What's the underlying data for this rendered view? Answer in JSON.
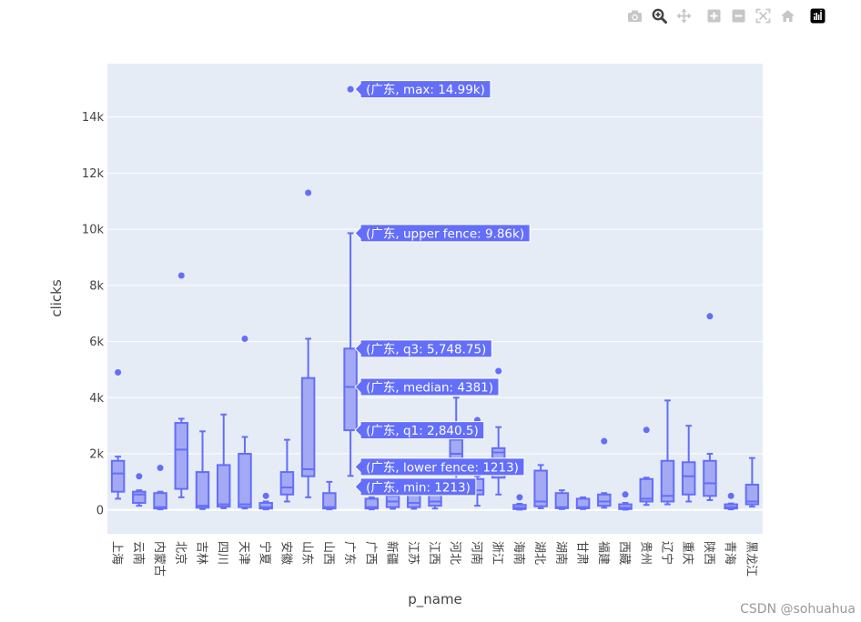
{
  "modebar": {
    "buttons": [
      {
        "name": "camera-icon",
        "color": "#c7c7c7"
      },
      {
        "name": "zoom-icon",
        "color": "#444444"
      },
      {
        "name": "pan-icon",
        "color": "#c7c7c7"
      },
      {
        "name": "zoom-in-icon",
        "color": "#c7c7c7"
      },
      {
        "name": "zoom-out-icon",
        "color": "#c7c7c7"
      },
      {
        "name": "autoscale-icon",
        "color": "#c7c7c7"
      },
      {
        "name": "reset-axes-icon",
        "color": "#c7c7c7"
      },
      {
        "name": "plotly-logo-icon",
        "color": "#000000"
      }
    ]
  },
  "watermark": "CSDN @sohuahua",
  "chart_data": {
    "type": "box",
    "xlabel": "p_name",
    "ylabel": "clicks",
    "ylim": [
      -850,
      15900
    ],
    "yticks": [
      0,
      2000,
      4000,
      6000,
      8000,
      10000,
      12000,
      14000
    ],
    "ytick_labels": [
      "0",
      "2k",
      "4k",
      "6k",
      "8k",
      "10k",
      "12k",
      "14k"
    ],
    "grid": true,
    "colors": {
      "box_line": "#636efa",
      "box_fill": "#a4a9f4",
      "plot_bg": "#e5ecf6",
      "grid": "#ffffff"
    },
    "categories": [
      "上海",
      "云南",
      "内蒙古",
      "北京",
      "吉林",
      "四川",
      "天津",
      "宁夏",
      "安徽",
      "山东",
      "山西",
      "广东",
      "广西",
      "新疆",
      "江苏",
      "江西",
      "河北",
      "河南",
      "浙江",
      "海南",
      "湖北",
      "湖南",
      "甘肃",
      "福建",
      "西藏",
      "贵州",
      "辽宁",
      "重庆",
      "陕西",
      "青海",
      "黑龙江"
    ],
    "boxes": [
      {
        "min": 400,
        "q1": 650,
        "median": 1300,
        "q3": 1750,
        "max": 1900,
        "outliers": [
          4900
        ]
      },
      {
        "min": 150,
        "q1": 250,
        "median": 550,
        "q3": 650,
        "max": 700,
        "outliers": [
          1200
        ]
      },
      {
        "min": 20,
        "q1": 50,
        "median": 100,
        "q3": 600,
        "max": 650,
        "outliers": [
          1500
        ]
      },
      {
        "min": 450,
        "q1": 750,
        "median": 2150,
        "q3": 3100,
        "max": 3250,
        "outliers": [
          8350
        ]
      },
      {
        "min": 30,
        "q1": 80,
        "median": 150,
        "q3": 1350,
        "max": 2800,
        "outliers": []
      },
      {
        "min": 60,
        "q1": 120,
        "median": 200,
        "q3": 1600,
        "max": 3400,
        "outliers": []
      },
      {
        "min": 50,
        "q1": 100,
        "median": 200,
        "q3": 2000,
        "max": 2600,
        "outliers": [
          6100
        ]
      },
      {
        "min": 20,
        "q1": 50,
        "median": 100,
        "q3": 250,
        "max": 300,
        "outliers": [
          500
        ]
      },
      {
        "min": 300,
        "q1": 550,
        "median": 800,
        "q3": 1350,
        "max": 2500,
        "outliers": []
      },
      {
        "min": 450,
        "q1": 1200,
        "median": 1450,
        "q3": 4700,
        "max": 6100,
        "outliers": [
          11300
        ]
      },
      {
        "min": 20,
        "q1": 50,
        "median": 100,
        "q3": 600,
        "max": 1000,
        "outliers": []
      },
      {
        "min": 1213,
        "q1": 2840.5,
        "median": 4381,
        "q3": 5748.75,
        "max": 9860,
        "outliers": [
          14990
        ]
      },
      {
        "min": 20,
        "q1": 50,
        "median": 100,
        "q3": 400,
        "max": 450,
        "outliers": []
      },
      {
        "min": 40,
        "q1": 100,
        "median": 300,
        "q3": 500,
        "max": 600,
        "outliers": []
      },
      {
        "min": 40,
        "q1": 100,
        "median": 250,
        "q3": 550,
        "max": 700,
        "outliers": []
      },
      {
        "min": 50,
        "q1": 150,
        "median": 300,
        "q3": 650,
        "max": 800,
        "outliers": []
      },
      {
        "min": 700,
        "q1": 1250,
        "median": 2000,
        "q3": 2500,
        "max": 4000,
        "outliers": []
      },
      {
        "min": 150,
        "q1": 550,
        "median": 700,
        "q3": 1100,
        "max": 1200,
        "outliers": [
          3200
        ]
      },
      {
        "min": 550,
        "q1": 1150,
        "median": 2050,
        "q3": 2200,
        "max": 2950,
        "outliers": [
          4950
        ]
      },
      {
        "min": 10,
        "q1": 30,
        "median": 80,
        "q3": 180,
        "max": 220,
        "outliers": [
          450
        ]
      },
      {
        "min": 60,
        "q1": 130,
        "median": 300,
        "q3": 1400,
        "max": 1600,
        "outliers": []
      },
      {
        "min": 30,
        "q1": 60,
        "median": 100,
        "q3": 600,
        "max": 700,
        "outliers": []
      },
      {
        "min": 30,
        "q1": 60,
        "median": 100,
        "q3": 400,
        "max": 450,
        "outliers": []
      },
      {
        "min": 80,
        "q1": 150,
        "median": 300,
        "q3": 550,
        "max": 600,
        "outliers": [
          2450
        ]
      },
      {
        "min": 10,
        "q1": 30,
        "median": 80,
        "q3": 200,
        "max": 250,
        "outliers": [
          550
        ]
      },
      {
        "min": 180,
        "q1": 300,
        "median": 400,
        "q3": 1100,
        "max": 1150,
        "outliers": [
          2850
        ]
      },
      {
        "min": 200,
        "q1": 300,
        "median": 500,
        "q3": 1750,
        "max": 3900,
        "outliers": []
      },
      {
        "min": 300,
        "q1": 550,
        "median": 1200,
        "q3": 1700,
        "max": 3000,
        "outliers": []
      },
      {
        "min": 350,
        "q1": 500,
        "median": 950,
        "q3": 1750,
        "max": 2000,
        "outliers": [
          6900
        ]
      },
      {
        "min": 20,
        "q1": 50,
        "median": 100,
        "q3": 200,
        "max": 230,
        "outliers": [
          500
        ]
      },
      {
        "min": 120,
        "q1": 200,
        "median": 300,
        "q3": 900,
        "max": 1850,
        "outliers": []
      }
    ],
    "hover": {
      "category": "广东",
      "labels": [
        {
          "text": "(广东, max: 14.99k)",
          "value": 14990
        },
        {
          "text": "(广东, upper fence: 9.86k)",
          "value": 9860
        },
        {
          "text": "(广东, q3: 5,748.75)",
          "value": 5748.75
        },
        {
          "text": "(广东, median: 4381)",
          "value": 4381
        },
        {
          "text": "(广东, q1: 2,840.5)",
          "value": 2840.5
        },
        {
          "text": "(广东, lower fence: 1213)",
          "value": 1213
        },
        {
          "text": "(广东, min: 1213)",
          "value": 1213
        }
      ]
    }
  }
}
